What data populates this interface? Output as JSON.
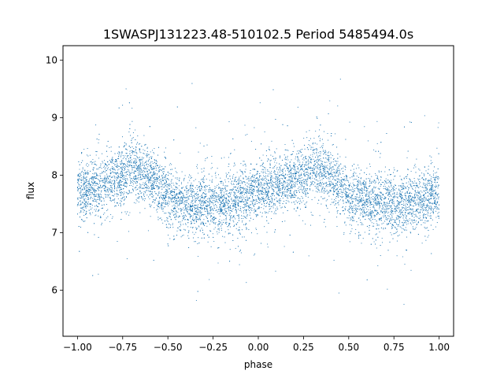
{
  "chart_data": {
    "type": "scatter",
    "title": "1SWASPJ131223.48-510102.5 Period 5485494.0s",
    "xlabel": "phase",
    "ylabel": "flux",
    "xlim": [
      -1.08,
      1.08
    ],
    "ylim": [
      5.2,
      10.25
    ],
    "xticks": [
      -1.0,
      -0.75,
      -0.5,
      -0.25,
      0.0,
      0.25,
      0.5,
      0.75,
      1.0
    ],
    "xtick_labels": [
      "−1.00",
      "−0.75",
      "−0.50",
      "−0.25",
      "0.00",
      "0.25",
      "0.50",
      "0.75",
      "1.00"
    ],
    "yticks": [
      6,
      7,
      8,
      9,
      10
    ],
    "ytick_labels": [
      "6",
      "7",
      "8",
      "9",
      "10"
    ],
    "grid": false,
    "legend": "none",
    "marker_color": "#1f77b4",
    "series": [
      {
        "phase_profile_x": [
          -1.0,
          -0.9,
          -0.8,
          -0.75,
          -0.7,
          -0.6,
          -0.5,
          -0.4,
          -0.3,
          -0.25,
          -0.2,
          -0.1,
          0.0,
          0.1,
          0.2,
          0.25,
          0.3,
          0.4,
          0.5,
          0.6,
          0.7,
          0.75,
          0.8,
          0.9,
          1.0
        ],
        "phase_profile_flux": [
          7.7,
          7.8,
          7.9,
          8.0,
          8.15,
          8.0,
          7.6,
          7.5,
          7.5,
          7.45,
          7.5,
          7.6,
          7.7,
          7.8,
          7.9,
          8.0,
          8.15,
          8.0,
          7.6,
          7.5,
          7.5,
          7.45,
          7.5,
          7.6,
          7.7
        ],
        "flux_range": [
          5.4,
          10.0
        ]
      }
    ]
  }
}
